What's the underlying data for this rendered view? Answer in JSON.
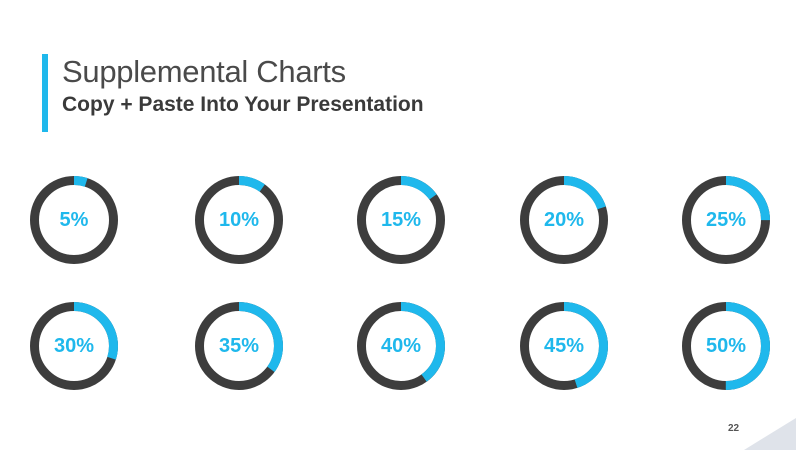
{
  "slide": {
    "title": "Supplemental Charts",
    "subtitle": "Copy + Paste Into Your Presentation",
    "page_number": "22"
  },
  "colors": {
    "accent": "#1fb8ec",
    "track": "#3d3d3d",
    "title_text": "#4a4a4a",
    "corner": "#dfe3ea"
  },
  "chart_data": [
    {
      "type": "pie",
      "label": "5%",
      "value": 5
    },
    {
      "type": "pie",
      "label": "10%",
      "value": 10
    },
    {
      "type": "pie",
      "label": "15%",
      "value": 15
    },
    {
      "type": "pie",
      "label": "20%",
      "value": 20
    },
    {
      "type": "pie",
      "label": "25%",
      "value": 25
    },
    {
      "type": "pie",
      "label": "30%",
      "value": 30
    },
    {
      "type": "pie",
      "label": "35%",
      "value": 35
    },
    {
      "type": "pie",
      "label": "40%",
      "value": 40
    },
    {
      "type": "pie",
      "label": "45%",
      "value": 45
    },
    {
      "type": "pie",
      "label": "50%",
      "value": 50
    }
  ]
}
